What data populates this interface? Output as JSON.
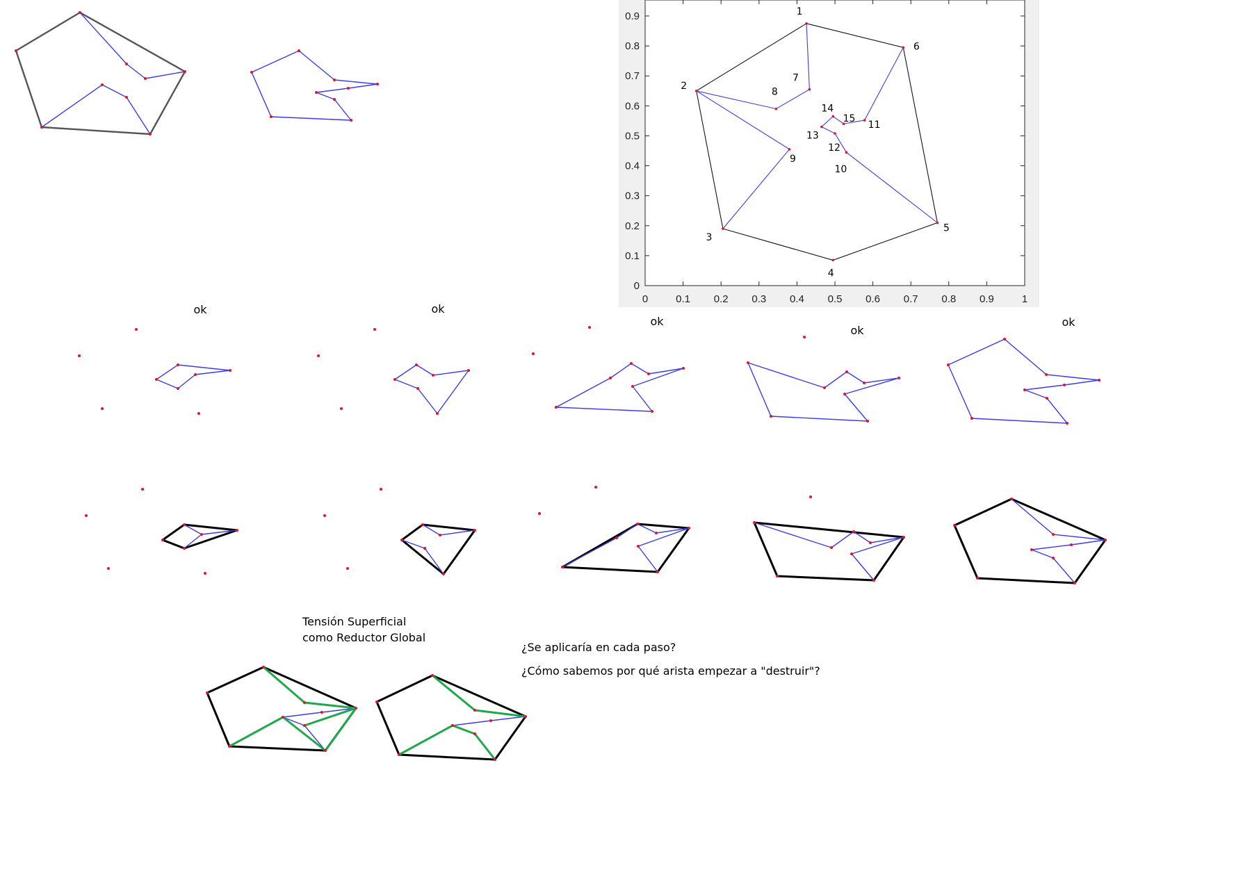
{
  "colors": {
    "hull": "#000000",
    "path": "#3a3af0",
    "reduce": "#1fa84a",
    "point": "#e8102a",
    "plot_bg": "#f0f0f0"
  },
  "ok_label": "ok",
  "notes": {
    "title_line1": "Tensión Superficial",
    "title_line2": "como Reductor Global",
    "question1": "¿Se aplicaría en cada paso?",
    "question2": "¿Cómo sabemos por qué arista empezar a \"destruir\"?"
  },
  "chart_data": {
    "type": "scatter",
    "title": "",
    "xlabel": "",
    "ylabel": "",
    "xlim": [
      0,
      1
    ],
    "ylim": [
      0,
      0.95
    ],
    "x_ticks": [
      "0",
      "0.1",
      "0.2",
      "0.3",
      "0.4",
      "0.5",
      "0.6",
      "0.7",
      "0.8",
      "0.9",
      "1"
    ],
    "y_ticks": [
      "0",
      "0.1",
      "0.2",
      "0.3",
      "0.4",
      "0.5",
      "0.6",
      "0.7",
      "0.8",
      "0.9"
    ],
    "points": [
      {
        "label": "1",
        "x": 0.425,
        "y": 0.875
      },
      {
        "label": "2",
        "x": 0.135,
        "y": 0.65
      },
      {
        "label": "3",
        "x": 0.205,
        "y": 0.19
      },
      {
        "label": "4",
        "x": 0.495,
        "y": 0.085
      },
      {
        "label": "5",
        "x": 0.77,
        "y": 0.21
      },
      {
        "label": "6",
        "x": 0.68,
        "y": 0.795
      },
      {
        "label": "7",
        "x": 0.433,
        "y": 0.655
      },
      {
        "label": "8",
        "x": 0.345,
        "y": 0.59
      },
      {
        "label": "9",
        "x": 0.38,
        "y": 0.455
      },
      {
        "label": "10",
        "x": 0.53,
        "y": 0.445
      },
      {
        "label": "11",
        "x": 0.578,
        "y": 0.552
      },
      {
        "label": "12",
        "x": 0.5,
        "y": 0.508
      },
      {
        "label": "13",
        "x": 0.465,
        "y": 0.53
      },
      {
        "label": "14",
        "x": 0.495,
        "y": 0.565
      },
      {
        "label": "15",
        "x": 0.523,
        "y": 0.54
      }
    ],
    "hull": [
      "1",
      "6",
      "5",
      "4",
      "3",
      "2",
      "1"
    ],
    "paths": [
      [
        "2",
        "8",
        "7",
        "1"
      ],
      [
        "2",
        "9",
        "3"
      ],
      [
        "5",
        "10",
        "12",
        "13",
        "14",
        "15",
        "11",
        "6"
      ]
    ]
  }
}
